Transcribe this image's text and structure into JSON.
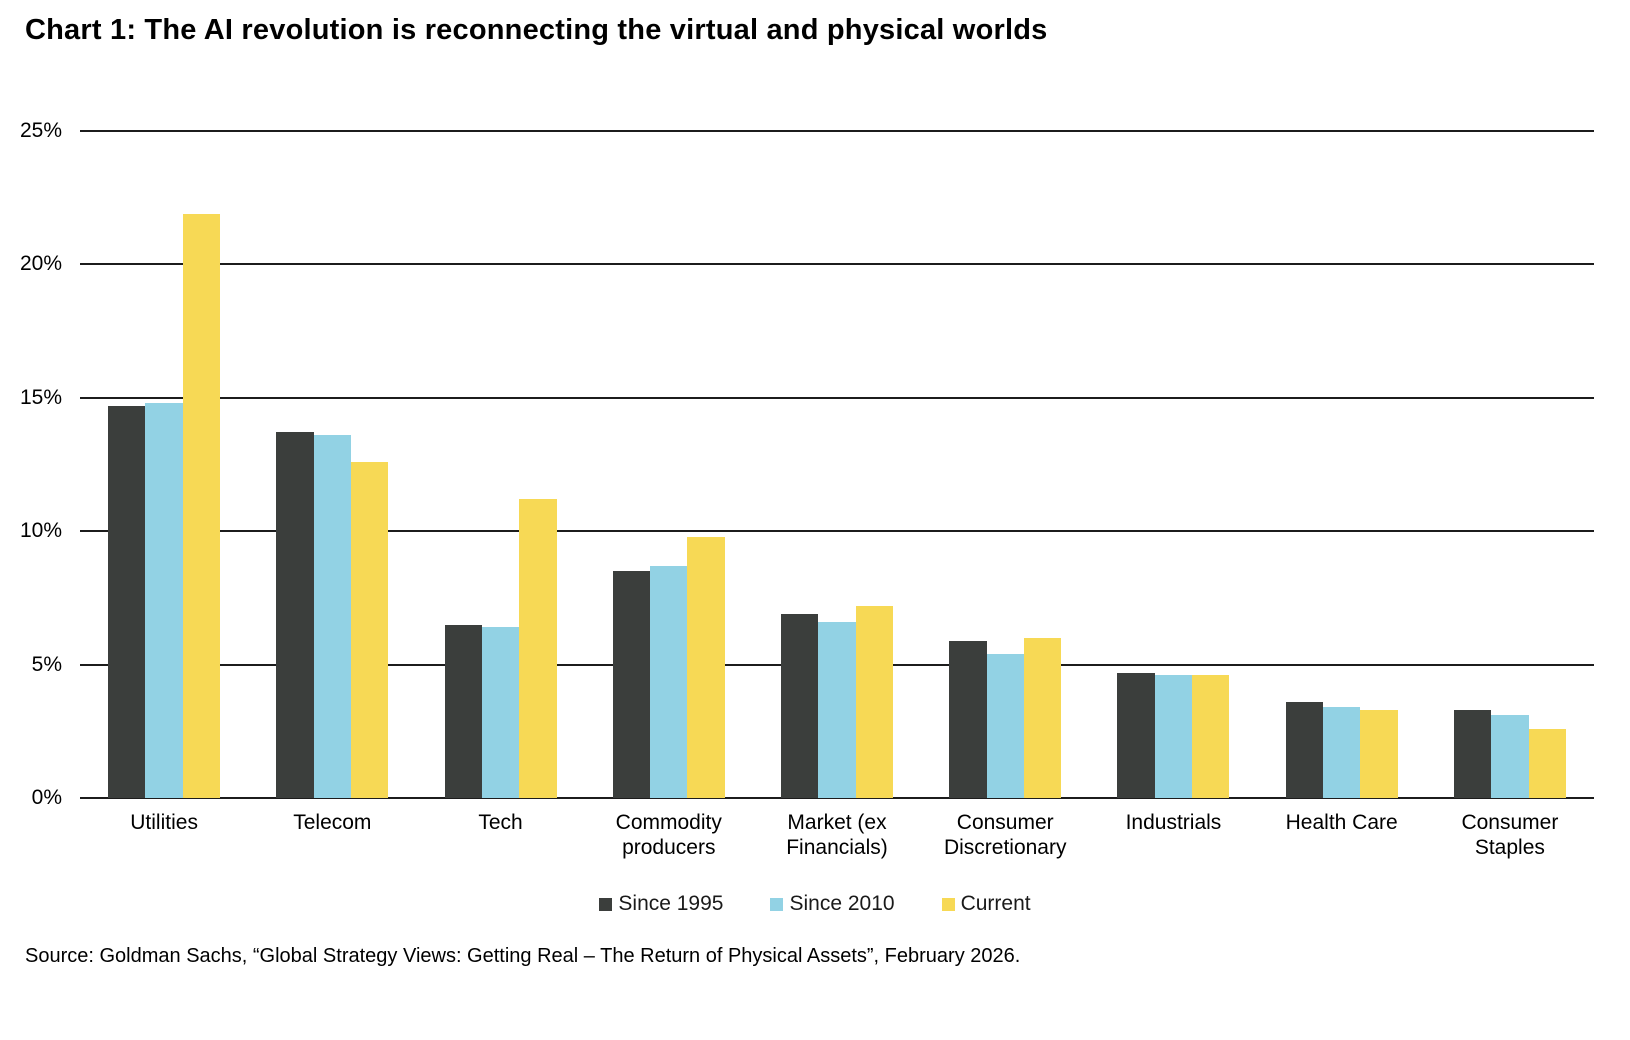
{
  "title": "Chart 1: The AI revolution is reconnecting the virtual and physical worlds",
  "source": "Source: Goldman Sachs, “Global Strategy Views: Getting Real – The Return of Physical Assets”, February 2026.",
  "chart_data": {
    "type": "bar",
    "title": "Chart 1: The AI revolution is reconnecting the virtual and physical worlds",
    "categories": [
      "Utilities",
      "Telecom",
      "Tech",
      "Commodity\nproducers",
      "Market (ex\nFinancials)",
      "Consumer\nDiscretionary",
      "Industrials",
      "Health Care",
      "Consumer\nStaples"
    ],
    "series": [
      {
        "name": "Since 1995",
        "color": "#3b3e3c",
        "values": [
          14.7,
          13.7,
          6.5,
          8.5,
          6.9,
          5.9,
          4.7,
          3.6,
          3.3
        ]
      },
      {
        "name": "Since 2010",
        "color": "#92d2e4",
        "values": [
          14.8,
          13.6,
          6.4,
          8.7,
          6.6,
          5.4,
          4.6,
          3.4,
          3.1
        ]
      },
      {
        "name": "Current",
        "color": "#f7d955",
        "values": [
          21.9,
          12.6,
          11.2,
          9.8,
          7.2,
          6.0,
          4.6,
          3.3,
          2.6
        ]
      }
    ],
    "xlabel": "",
    "ylabel": "",
    "ylim": [
      0,
      25
    ],
    "yticks": [
      0,
      5,
      10,
      15,
      20,
      25
    ],
    "ytick_labels": [
      "0%",
      "5%",
      "10%",
      "15%",
      "20%",
      "25%"
    ],
    "grid": true,
    "gridline_color": "#1c1c1c",
    "legend_position": "bottom"
  }
}
